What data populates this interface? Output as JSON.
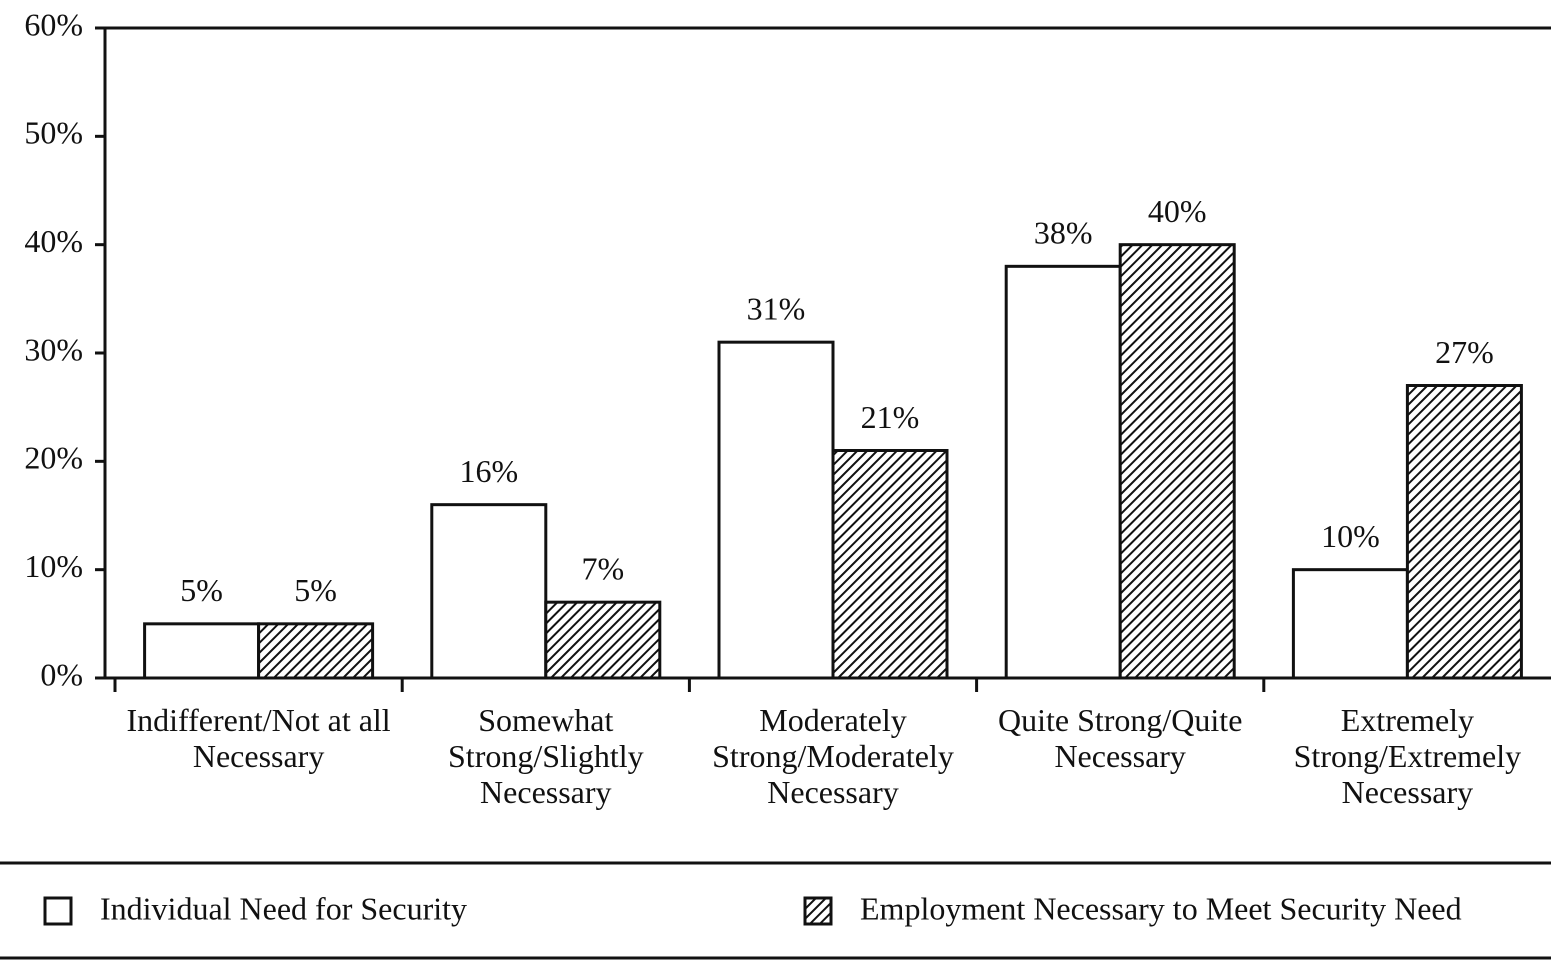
{
  "chart_data": {
    "type": "bar",
    "categories": [
      "Indifferent/Not at all Necessary",
      "Somewhat Strong/Slightly Necessary",
      "Moderately Strong/Moderately Necessary",
      "Quite Strong/Quite Necessary",
      "Extremely Strong/Extremely Necessary"
    ],
    "series": [
      {
        "name": "Individual Need for Security",
        "color": "#ffffff",
        "values": [
          5,
          16,
          31,
          38,
          10
        ],
        "value_labels": [
          "5%",
          "16%",
          "31%",
          "38%",
          "10%"
        ]
      },
      {
        "name": "Employment Necessary to Meet Security Need",
        "color": "#111111",
        "pattern": "diagonal-hatch",
        "values": [
          5,
          7,
          21,
          40,
          27
        ],
        "value_labels": [
          "5%",
          "7%",
          "21%",
          "40%",
          "27%"
        ]
      }
    ],
    "ylim": [
      0,
      60
    ],
    "yticks": [
      {
        "value": 0,
        "label": "0%"
      },
      {
        "value": 10,
        "label": "10%"
      },
      {
        "value": 20,
        "label": "20%"
      },
      {
        "value": 30,
        "label": "30%"
      },
      {
        "value": 40,
        "label": "40%"
      },
      {
        "value": 50,
        "label": "50%"
      },
      {
        "value": 60,
        "label": "60%"
      }
    ],
    "grid": false,
    "legend": "bottom"
  }
}
